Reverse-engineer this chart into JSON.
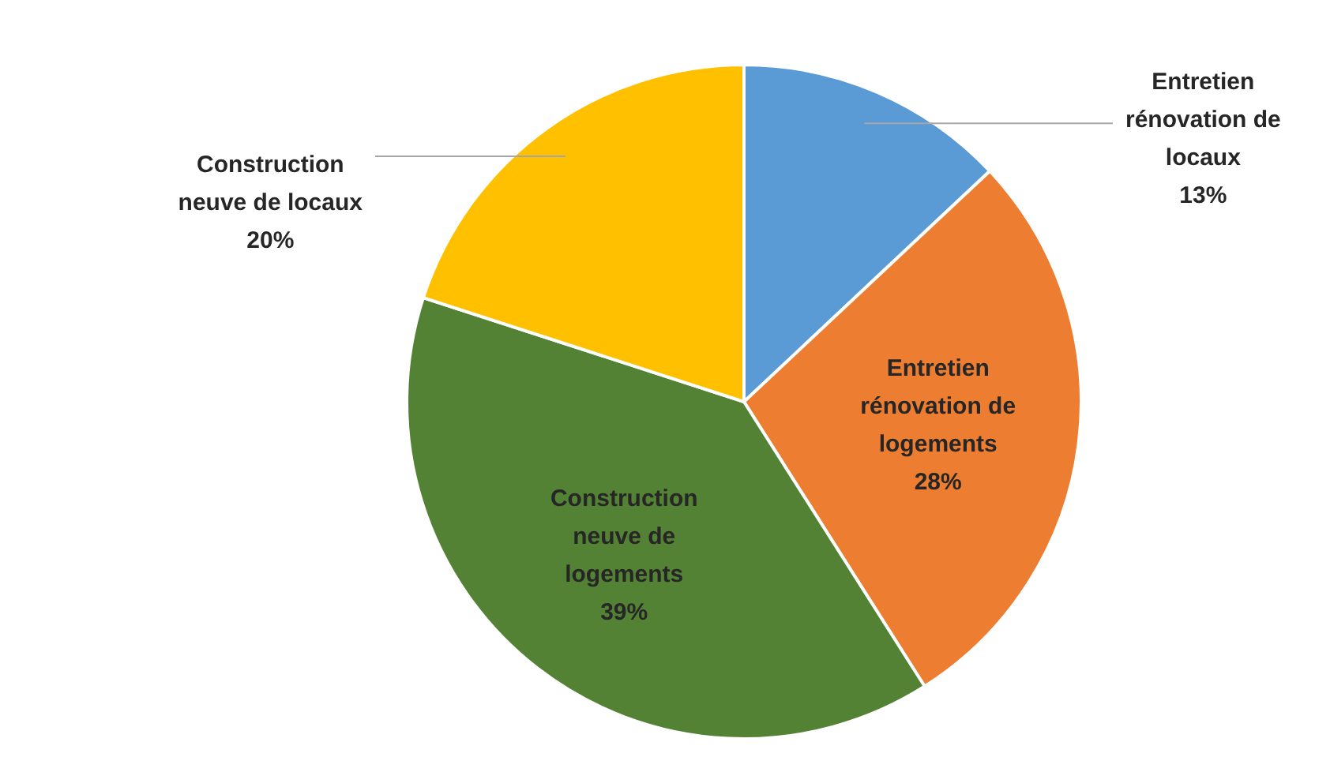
{
  "chart_data": {
    "type": "pie",
    "categories": [
      "Entretien rénovation de locaux",
      "Entretien rénovation de logements",
      "Construction neuve de logements",
      "Construction neuve de locaux"
    ],
    "values": [
      13,
      28,
      39,
      20
    ],
    "value_labels": [
      "13%",
      "28%",
      "39%",
      "20%"
    ],
    "colors": [
      "#5b9bd5",
      "#ed7d31",
      "#548235",
      "#ffc000"
    ],
    "legend": false
  }
}
